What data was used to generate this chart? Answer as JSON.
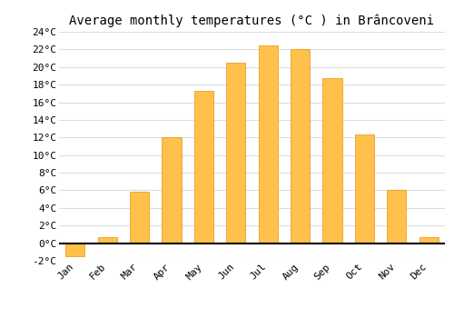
{
  "title": "Average monthly temperatures (°C ) in Brâncoveni",
  "months": [
    "Jan",
    "Feb",
    "Mar",
    "Apr",
    "May",
    "Jun",
    "Jul",
    "Aug",
    "Sep",
    "Oct",
    "Nov",
    "Dec"
  ],
  "values": [
    -1.5,
    0.7,
    5.8,
    12.0,
    17.3,
    20.5,
    22.5,
    22.0,
    18.7,
    12.3,
    6.0,
    0.7
  ],
  "ylim": [
    -2,
    24
  ],
  "yticks": [
    -2,
    0,
    2,
    4,
    6,
    8,
    10,
    12,
    14,
    16,
    18,
    20,
    22,
    24
  ],
  "ytick_labels": [
    "-2°C",
    "0°C",
    "2°C",
    "4°C",
    "6°C",
    "8°C",
    "10°C",
    "12°C",
    "14°C",
    "16°C",
    "18°C",
    "20°C",
    "22°C",
    "24°C"
  ],
  "bar_color_pos": "#FFC04C",
  "bar_color_neg": "#FFC04C",
  "bar_edge_color": "#E8940A",
  "background_color": "#ffffff",
  "grid_color": "#dddddd",
  "axline_color": "#000000",
  "title_fontsize": 10,
  "tick_fontsize": 8,
  "bar_width": 0.6
}
